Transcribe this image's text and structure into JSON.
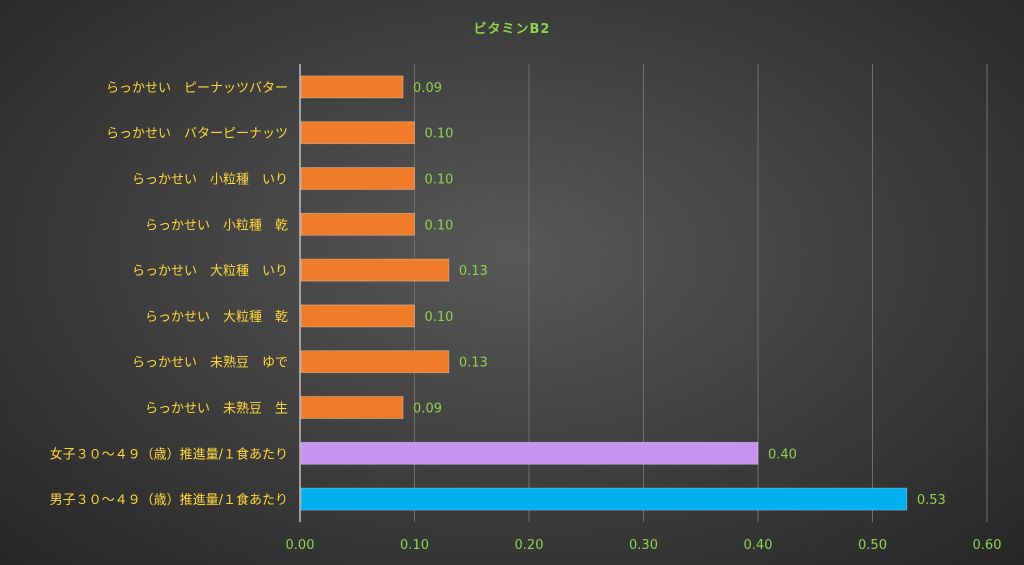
{
  "chart_data": {
    "type": "bar",
    "orientation": "horizontal",
    "title": "ビタミンB2",
    "categories": [
      "らっかせい　ピーナッツバター",
      "らっかせい　バターピーナッツ",
      "らっかせい　小粒種　いり",
      "らっかせい　小粒種　乾",
      "らっかせい　大粒種　いり",
      "らっかせい　大粒種　乾",
      "らっかせい　未熟豆　ゆで",
      "らっかせい　未熟豆　生",
      "女子３０～４９（歳）推進量/１食あたり",
      "男子３０～４９（歳）推進量/１食あたり"
    ],
    "values": [
      0.09,
      0.1,
      0.1,
      0.1,
      0.13,
      0.1,
      0.13,
      0.09,
      0.4,
      0.53
    ],
    "value_labels": [
      "0.09",
      "0.10",
      "0.10",
      "0.10",
      "0.13",
      "0.10",
      "0.13",
      "0.09",
      "0.40",
      "0.53"
    ],
    "bar_colors": [
      "#f07c2a",
      "#f07c2a",
      "#f07c2a",
      "#f07c2a",
      "#f07c2a",
      "#f07c2a",
      "#f07c2a",
      "#f07c2a",
      "#c792f0",
      "#00b0f0"
    ],
    "xlim": [
      0,
      0.6
    ],
    "x_ticks": [
      "0.00",
      "0.10",
      "0.20",
      "0.30",
      "0.40",
      "0.50",
      "0.60"
    ],
    "xlabel": "",
    "ylabel": "",
    "grid": "vertical",
    "legend": "none",
    "colors": {
      "title": "#92d050",
      "tick_labels": "#92d050",
      "category_labels": "#ffd93b",
      "data_labels": "#92d050",
      "gridlines": "#6e6e6e",
      "axis": "#bfbfbf"
    }
  }
}
